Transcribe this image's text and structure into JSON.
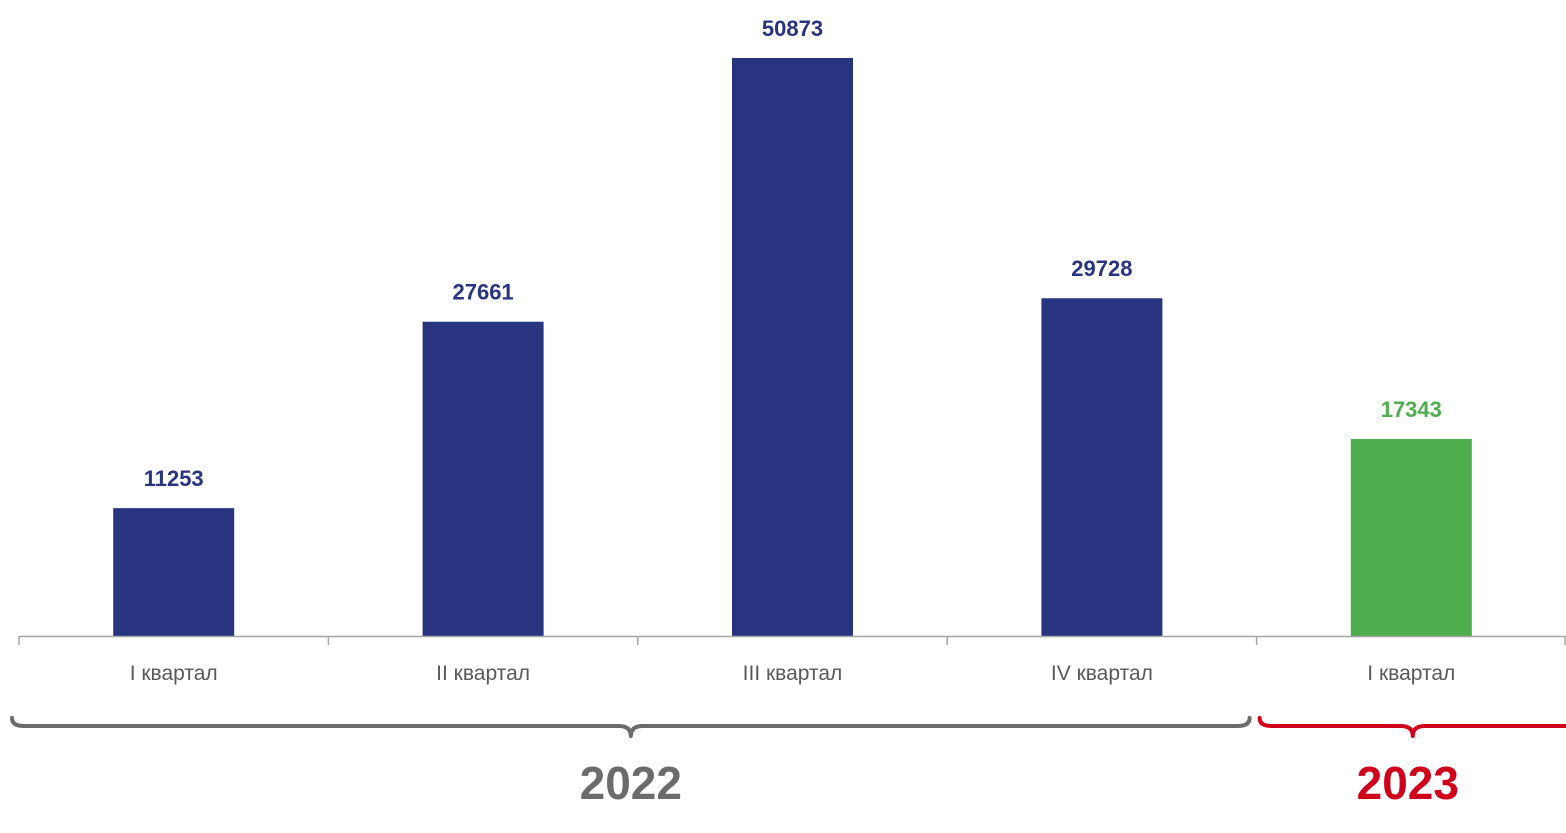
{
  "chart_data": {
    "type": "bar",
    "categories": [
      "I квартал",
      "II квартал",
      "III квартал",
      "IV квартал",
      "I квартал"
    ],
    "values": [
      11253,
      27661,
      50873,
      29728,
      17343
    ],
    "ylim": [
      0,
      52000
    ],
    "grid": false,
    "legend": "none",
    "colors": [
      "#283480",
      "#283480",
      "#283480",
      "#283480",
      "#4EAE4D"
    ],
    "groups": [
      {
        "label": "2022",
        "from": 0,
        "to": 3,
        "color": "#6B6B6B"
      },
      {
        "label": "2023",
        "from": 4,
        "to": 4,
        "color": "#D0021B"
      }
    ]
  },
  "style": {
    "axis_color": "#A6A6A6",
    "category_text_color": "#595959"
  }
}
